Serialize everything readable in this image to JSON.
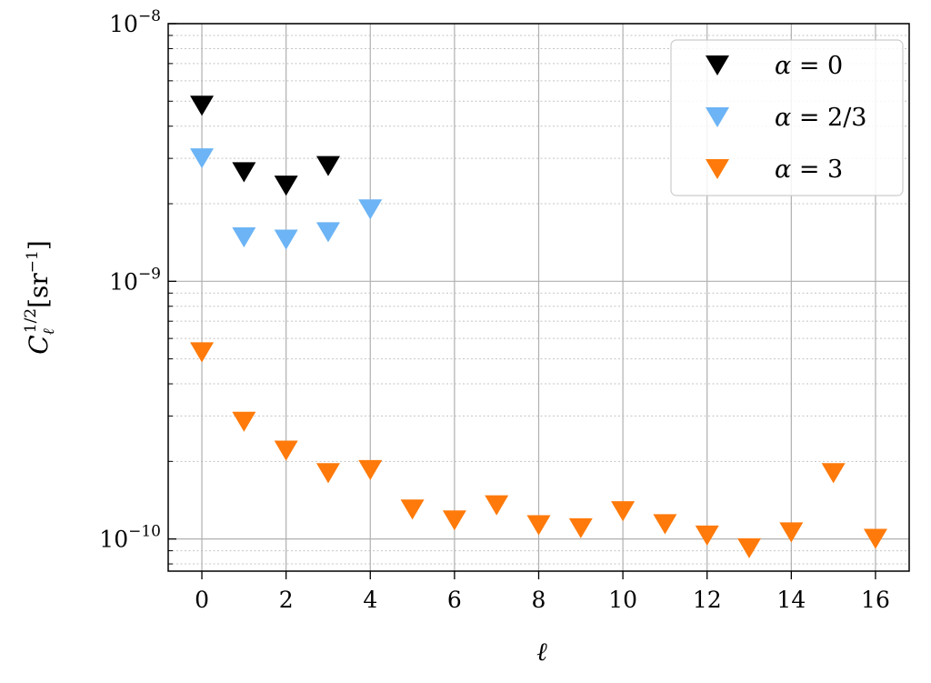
{
  "chart_data": {
    "type": "scatter",
    "xlabel": "ℓ",
    "ylabel": {
      "base": "C",
      "sub": "ℓ",
      "sup": "1/2",
      "unit": "[sr",
      "unit_sup": "−1",
      "unit_close": "]"
    },
    "xlim": [
      -0.8,
      16.8
    ],
    "ylim": [
      7.5e-11,
      1e-08
    ],
    "yscale": "log",
    "grid": true,
    "legend_position": "upper right",
    "x_ticks": [
      0,
      2,
      4,
      6,
      8,
      10,
      12,
      14,
      16
    ],
    "x_tick_labels": [
      "0",
      "2",
      "4",
      "6",
      "8",
      "10",
      "12",
      "14",
      "16"
    ],
    "y_ticks": [
      {
        "value": 1e-10,
        "base": "10",
        "exp": "−10"
      },
      {
        "value": 1e-09,
        "base": "10",
        "exp": "−9"
      },
      {
        "value": 1e-08,
        "base": "10",
        "exp": "−8"
      }
    ],
    "marker": "triangle-down",
    "series": [
      {
        "name": "α = 0",
        "legend": {
          "sym": "α",
          "rest": " = 0"
        },
        "color": "#000000",
        "x": [
          0,
          1,
          2,
          3
        ],
        "y": [
          4.8e-09,
          2.65e-09,
          2.35e-09,
          2.8e-09
        ]
      },
      {
        "name": "α = 2/3",
        "legend": {
          "sym": "α",
          "rest": " = 2/3"
        },
        "color": "#6cb4f5",
        "x": [
          0,
          1,
          2,
          3,
          4
        ],
        "y": [
          3e-09,
          1.48e-09,
          1.45e-09,
          1.55e-09,
          1.9e-09
        ]
      },
      {
        "name": "α = 3",
        "legend": {
          "sym": "α",
          "rest": " = 3"
        },
        "color": "#ff7a0a",
        "x": [
          0,
          1,
          2,
          3,
          4,
          5,
          6,
          7,
          8,
          9,
          10,
          11,
          12,
          13,
          14,
          15,
          16
        ],
        "y": [
          5.3e-10,
          2.85e-10,
          2.2e-10,
          1.8e-10,
          1.85e-10,
          1.3e-10,
          1.18e-10,
          1.35e-10,
          1.13e-10,
          1.1e-10,
          1.28e-10,
          1.14e-10,
          1.03e-10,
          9.2e-11,
          1.06e-10,
          1.8e-10,
          1e-10
        ]
      }
    ]
  }
}
